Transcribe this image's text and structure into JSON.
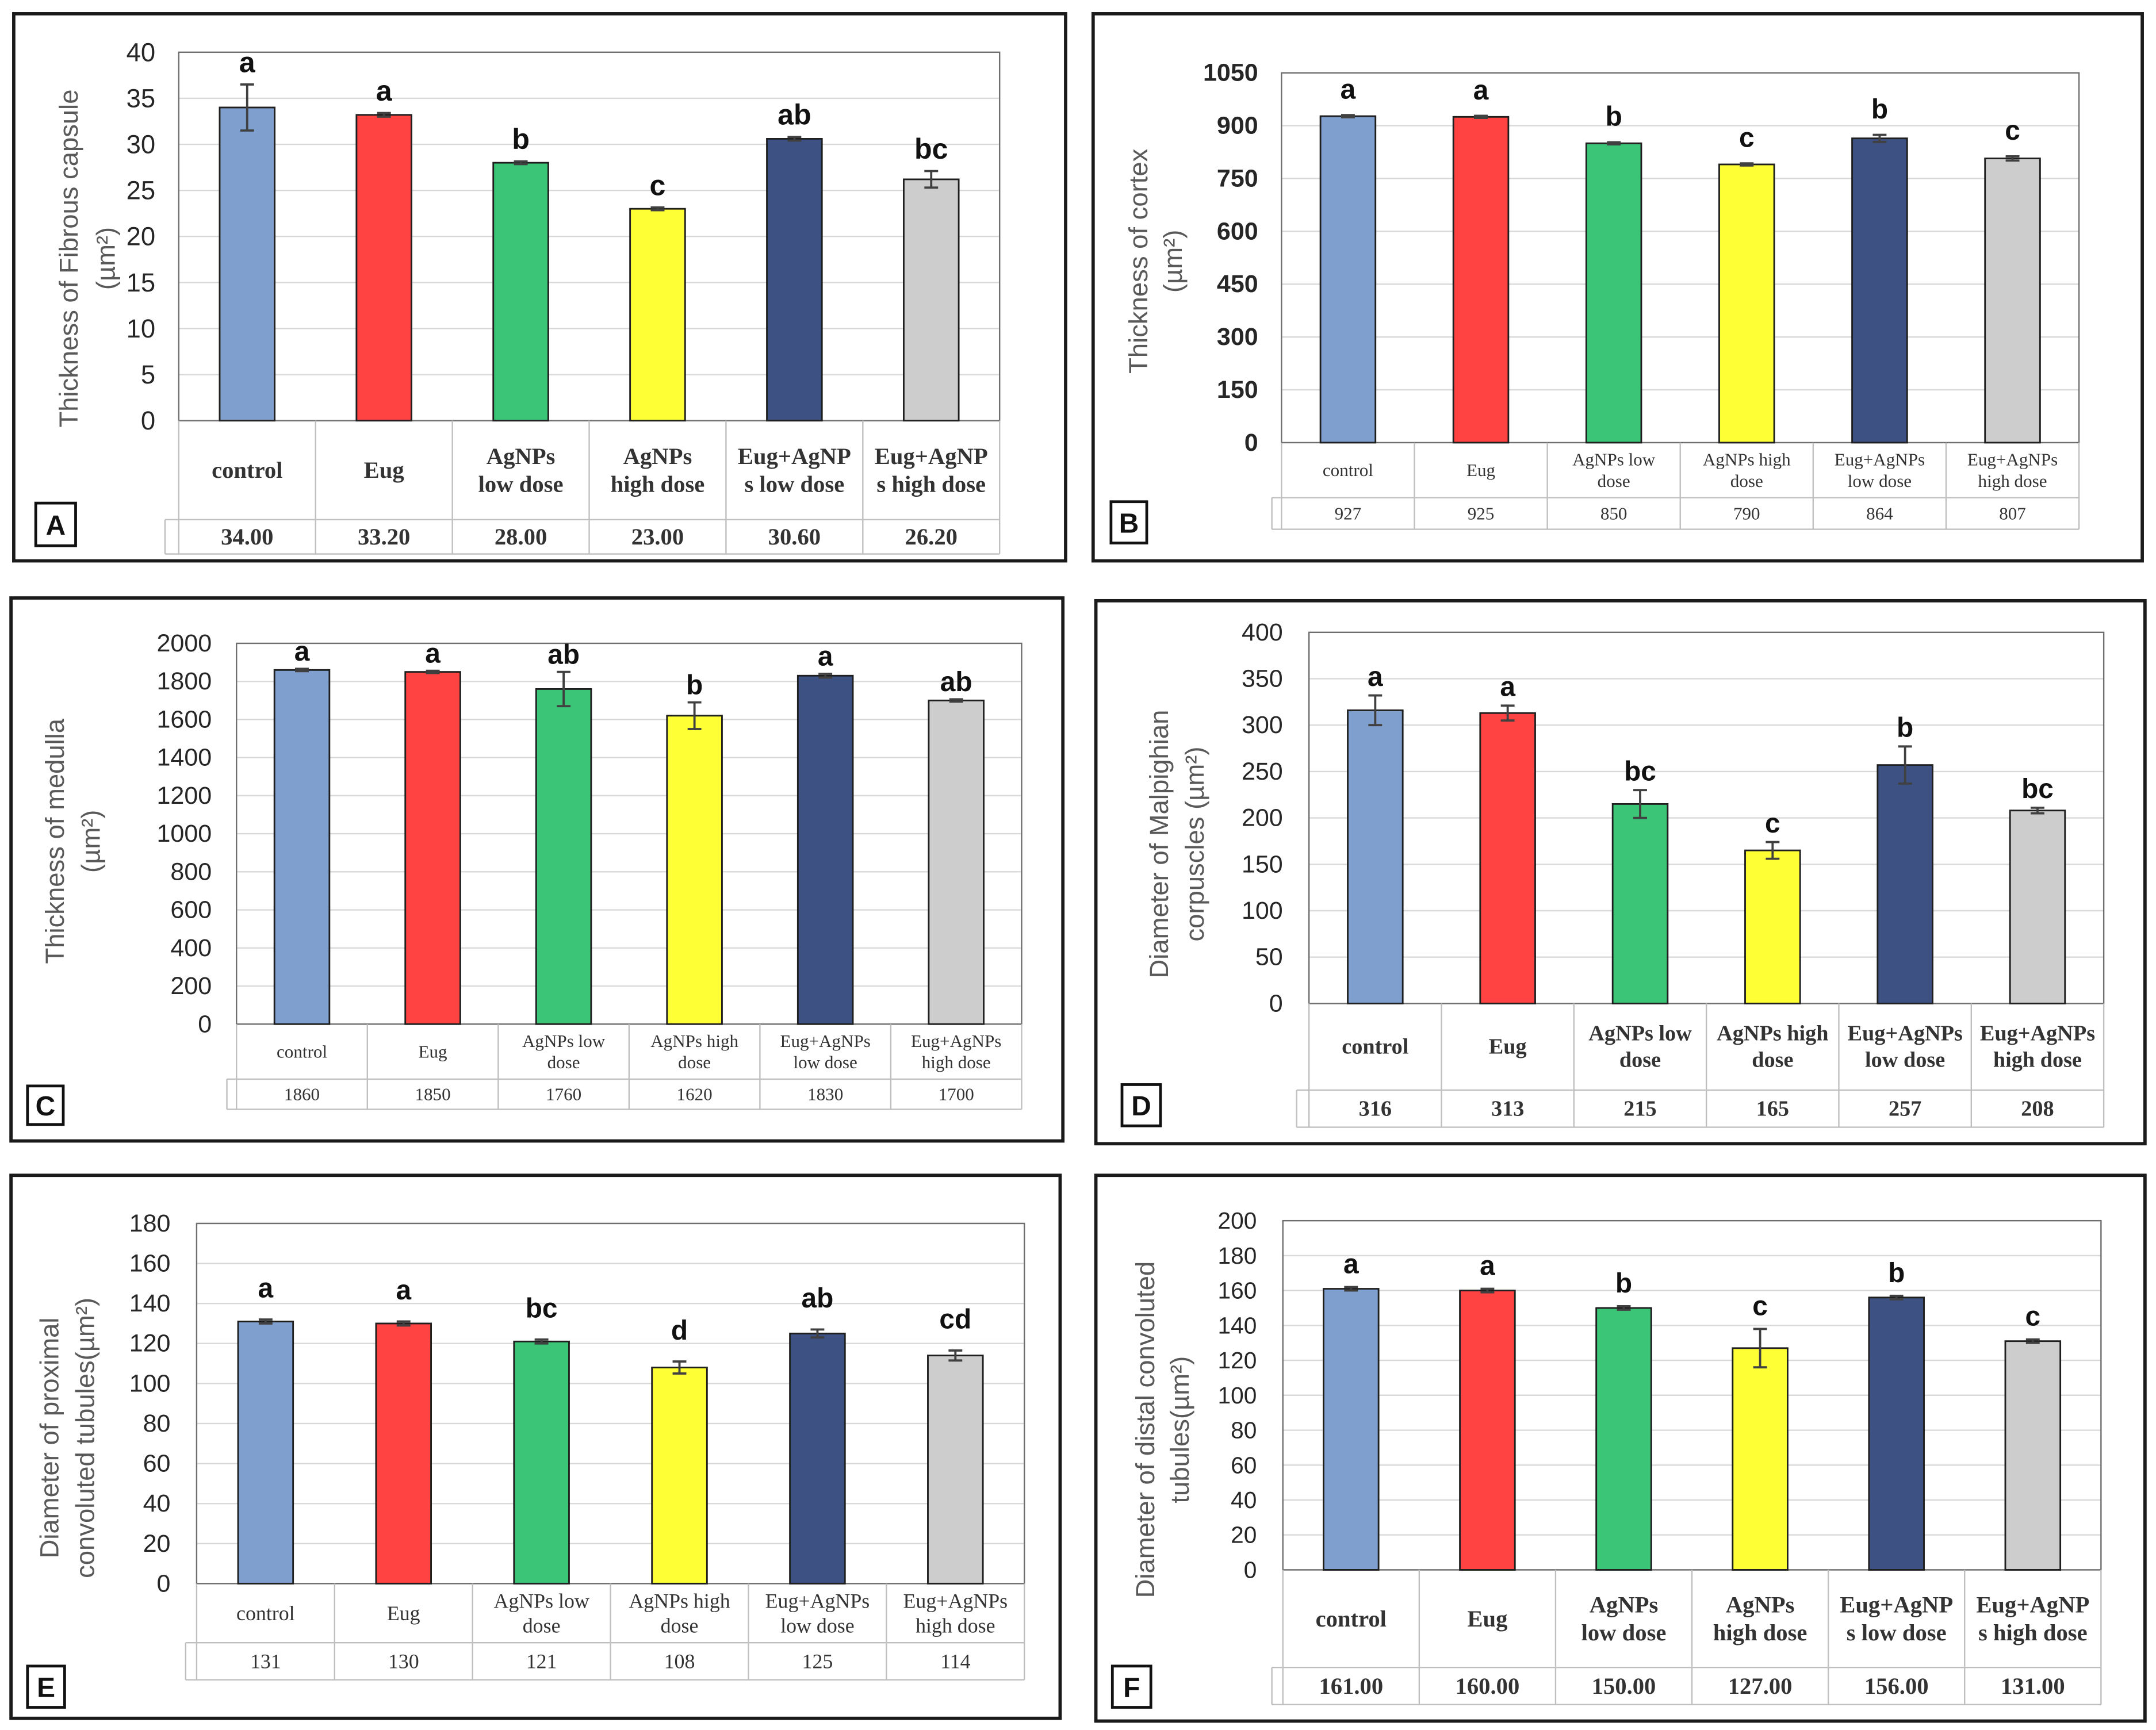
{
  "bar_colors": [
    "#7FA0CF",
    "#FF4242",
    "#3BC577",
    "#FFFF36",
    "#3D5283",
    "#CDCDCD"
  ],
  "chart_data": [
    {
      "panel_label": "A",
      "type": "bar",
      "ylabel": [
        "Thickness of Fibrous capsule",
        "(µm²)"
      ],
      "ylim": [
        0,
        40
      ],
      "yticks": [
        0,
        5,
        10,
        15,
        20,
        25,
        30,
        35,
        40
      ],
      "categories": [
        [
          "control"
        ],
        [
          "Eug"
        ],
        [
          "AgNPs",
          "low dose"
        ],
        [
          "AgNPs",
          "high dose"
        ],
        [
          "Eug+AgNP",
          "s low dose"
        ],
        [
          "Eug+AgNP",
          "s high dose"
        ]
      ],
      "values": [
        34.0,
        33.2,
        28.0,
        23.0,
        30.6,
        26.2
      ],
      "errors": [
        2.5,
        0.2,
        0.15,
        0.15,
        0.2,
        0.9
      ],
      "significance": [
        "a",
        "a",
        "b",
        "c",
        "ab",
        "bc"
      ],
      "table_values": [
        "34.00",
        "33.20",
        "28.00",
        "23.00",
        "30.60",
        "26.20"
      ]
    },
    {
      "panel_label": "B",
      "type": "bar",
      "ylabel": [
        "Thickness of cortex",
        "(µm²)"
      ],
      "ylim": [
        0,
        1050
      ],
      "yticks": [
        0,
        150,
        300,
        450,
        600,
        750,
        900,
        1050
      ],
      "categories": [
        [
          "control"
        ],
        [
          "Eug"
        ],
        [
          "AgNPs low",
          "dose"
        ],
        [
          "AgNPs high",
          "dose"
        ],
        [
          "Eug+AgNPs",
          "low dose"
        ],
        [
          "Eug+AgNPs",
          "high dose"
        ]
      ],
      "values": [
        927,
        925,
        850,
        790,
        864,
        807
      ],
      "errors": [
        3,
        3,
        3,
        3,
        10,
        6
      ],
      "significance": [
        "a",
        "a",
        "b",
        "c",
        "b",
        "c"
      ],
      "table_values": [
        "927",
        "925",
        "850",
        "790",
        "864",
        "807"
      ]
    },
    {
      "panel_label": "C",
      "type": "bar",
      "ylabel": [
        "Thickness of medulla",
        "(µm²)"
      ],
      "ylim": [
        0,
        2000
      ],
      "yticks": [
        0,
        200,
        400,
        600,
        800,
        1000,
        1200,
        1400,
        1600,
        1800,
        2000
      ],
      "categories": [
        [
          "control"
        ],
        [
          "Eug"
        ],
        [
          "AgNPs low",
          "dose"
        ],
        [
          "AgNPs high",
          "dose"
        ],
        [
          "Eug+AgNPs",
          "low dose"
        ],
        [
          "Eug+AgNPs",
          "high dose"
        ]
      ],
      "values": [
        1860,
        1850,
        1760,
        1620,
        1830,
        1700
      ],
      "errors": [
        6,
        6,
        90,
        70,
        10,
        6
      ],
      "significance": [
        "a",
        "a",
        "ab",
        "b",
        "a",
        "ab"
      ],
      "table_values": [
        "1860",
        "1850",
        "1760",
        "1620",
        "1830",
        "1700"
      ]
    },
    {
      "panel_label": "D",
      "type": "bar",
      "ylabel": [
        "Diameter of Malpighian",
        "corpuscles (µm²)"
      ],
      "ylim": [
        0,
        400
      ],
      "yticks": [
        0,
        50,
        100,
        150,
        200,
        250,
        300,
        350,
        400
      ],
      "categories": [
        [
          "control"
        ],
        [
          "Eug"
        ],
        [
          "AgNPs low",
          "dose"
        ],
        [
          "AgNPs high",
          "dose"
        ],
        [
          "Eug+AgNPs",
          "low dose"
        ],
        [
          "Eug+AgNPs",
          "high dose"
        ]
      ],
      "values": [
        316,
        313,
        215,
        165,
        257,
        208
      ],
      "errors": [
        16,
        8,
        15,
        9,
        20,
        3
      ],
      "significance": [
        "a",
        "a",
        "bc",
        "c",
        "b",
        "bc"
      ],
      "table_values": [
        "316",
        "313",
        "215",
        "165",
        "257",
        "208"
      ]
    },
    {
      "panel_label": "E",
      "type": "bar",
      "ylabel": [
        "Diameter of proximal",
        "convoluted tubules(µm²)"
      ],
      "ylim": [
        0,
        180
      ],
      "yticks": [
        0,
        20,
        40,
        60,
        80,
        100,
        120,
        140,
        160,
        180
      ],
      "categories": [
        [
          "control"
        ],
        [
          "Eug"
        ],
        [
          "AgNPs low",
          "dose"
        ],
        [
          "AgNPs high",
          "dose"
        ],
        [
          "Eug+AgNPs",
          "low dose"
        ],
        [
          "Eug+AgNPs",
          "high dose"
        ]
      ],
      "values": [
        131,
        130,
        121,
        108,
        125,
        114
      ],
      "errors": [
        1,
        1,
        1,
        3,
        2,
        2.5
      ],
      "significance": [
        "a",
        "a",
        "bc",
        "d",
        "ab",
        "cd"
      ],
      "table_values": [
        "131",
        "130",
        "121",
        "108",
        "125",
        "114"
      ]
    },
    {
      "panel_label": "F",
      "type": "bar",
      "ylabel": [
        "Diameter of distal convoluted",
        "tubules(µm²)"
      ],
      "ylim": [
        0,
        200
      ],
      "yticks": [
        0,
        20,
        40,
        60,
        80,
        100,
        120,
        140,
        160,
        180,
        200
      ],
      "categories": [
        [
          "control"
        ],
        [
          "Eug"
        ],
        [
          "AgNPs",
          "low dose"
        ],
        [
          "AgNPs",
          "high dose"
        ],
        [
          "Eug+AgNP",
          "s low dose"
        ],
        [
          "Eug+AgNP",
          "s high dose"
        ]
      ],
      "values": [
        161,
        160,
        150,
        127,
        156,
        131
      ],
      "errors": [
        1,
        1,
        1,
        11,
        1,
        1
      ],
      "significance": [
        "a",
        "a",
        "b",
        "c",
        "b",
        "c"
      ],
      "table_values": [
        "161.00",
        "160.00",
        "150.00",
        "127.00",
        "156.00",
        "131.00"
      ]
    }
  ]
}
